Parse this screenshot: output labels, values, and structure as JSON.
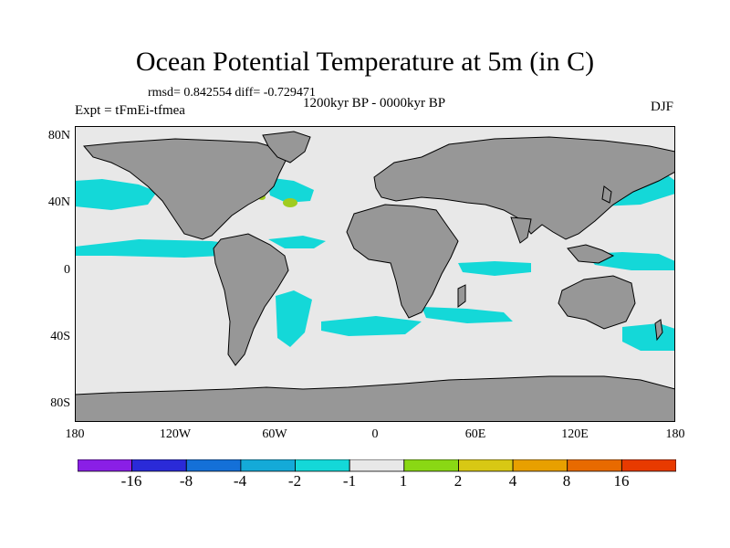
{
  "title": "Ocean Potential Temperature at 5m (in C)",
  "stats": "rmsd= 0.842554  diff= -0.729471",
  "period": "1200kyr BP - 0000kyr BP",
  "experiment": "Expt = tFmEi-tfmea",
  "season": "DJF",
  "y_ticks": [
    "80N",
    "40N",
    "0",
    "40S",
    "80S"
  ],
  "x_ticks": [
    "180",
    "120W",
    "60W",
    "0",
    "60E",
    "120E",
    "180"
  ],
  "colorbar": {
    "colors": [
      "#8a1fe6",
      "#2a2ad8",
      "#1470d8",
      "#14aad8",
      "#14d8d8",
      "#e8e8e8",
      "#8ad814",
      "#d8c814",
      "#e8a000",
      "#e86a00",
      "#e83a00"
    ],
    "labels": [
      "-16",
      "-8",
      "-4",
      "-2",
      "-1",
      "1",
      "2",
      "4",
      "8",
      "16"
    ]
  },
  "map_colors": {
    "land": "#979797",
    "ocean": "#e8e8e8",
    "cool": "#14d8d8",
    "warm": "#a0cc20"
  }
}
